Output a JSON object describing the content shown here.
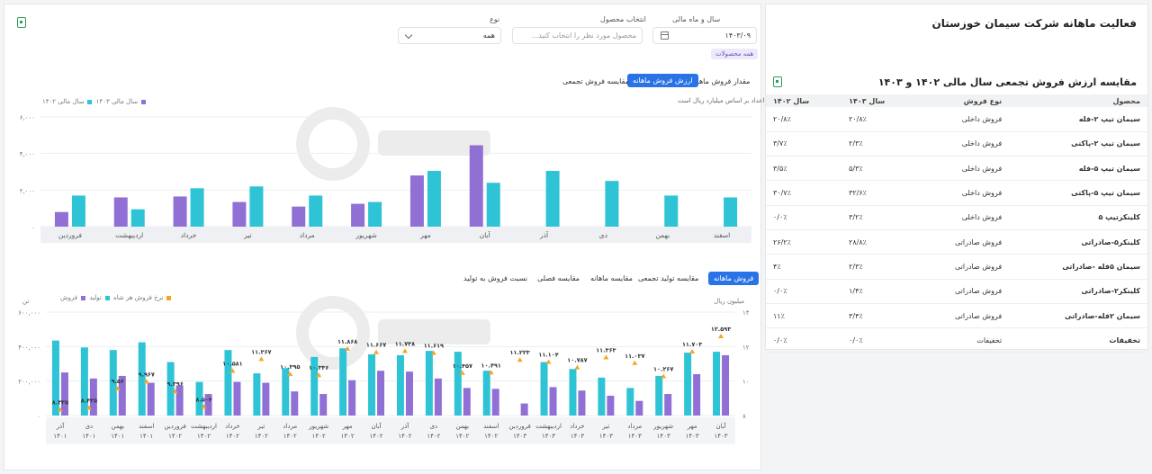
{
  "page": {
    "title": "فعالیت ماهانه شرکت سیمان خوزستان",
    "colors": {
      "teal": "#2ec4d6",
      "purple": "#9170d6",
      "orange": "#f5a623",
      "accent": "#2a73e6"
    }
  },
  "filters": {
    "period_label": "سال و ماه مالی",
    "period_value": "۱۴۰۳/۰۹",
    "product_label": "انتخاب محصول",
    "product_placeholder": "محصول مورد نظر را انتخاب کنید...",
    "type_label": "نوع",
    "type_value": "همه",
    "chip": "همه محصولات"
  },
  "top_tabs": [
    "مقدار فروش ماهانه",
    "ارزش فروش ماهانه",
    "مقایسه فروش تجمعی"
  ],
  "top_tab_active": 1,
  "bottom_tabs": [
    "فروش ماهانه",
    "مقایسه تولید تجمعی",
    "مقایسه ماهانه",
    "مقایسه فصلی",
    "نسبت فروش به تولید"
  ],
  "bottom_tab_active": 0,
  "icons": {
    "export": "excel-export-icon",
    "calendar": "calendar-icon",
    "dropdown": "chevron-down-icon"
  },
  "chart_data": [
    {
      "type": "bar",
      "note": "اعداد بر اساس میلیارد ریال است",
      "ylim": [
        0,
        6000
      ],
      "yticks": [
        "۶,۰۰۰",
        "۴,۰۰۰",
        "۲,۰۰۰",
        "۰"
      ],
      "categories": [
        "اسفند",
        "بهمن",
        "دی",
        "آذر",
        "آبان",
        "مهر",
        "شهریور",
        "مرداد",
        "تیر",
        "خرداد",
        "اردیبهشت",
        "فروردین"
      ],
      "series": [
        {
          "name": "سال مالی ۱۴۰۲",
          "color": "#2ec4d6",
          "values": [
            1600,
            1700,
            2500,
            3050,
            2400,
            3050,
            1350,
            1700,
            2200,
            2100,
            950,
            1700
          ]
        },
        {
          "name": "سال مالی ۱۴۰۳",
          "color": "#9170d6",
          "values": [
            null,
            null,
            null,
            null,
            4450,
            2800,
            1250,
            1100,
            1350,
            1650,
            1600,
            800
          ]
        }
      ]
    },
    {
      "type": "bar",
      "y_left_label": "تن",
      "y_right_label": "میلیون ریال",
      "ylim_left": [
        0,
        600000
      ],
      "yticks_left": [
        "۶۰۰,۰۰۰",
        "۴۰۰,۰۰۰",
        "۲۰۰,۰۰۰",
        "۰"
      ],
      "ylim_right": [
        8,
        14
      ],
      "yticks_right": [
        "۱۴",
        "۱۲",
        "۱۰",
        "۸"
      ],
      "categories": [
        "آبان ۱۴۰۳",
        "مهر ۱۴۰۳",
        "شهریور ۱۴۰۳",
        "مرداد ۱۴۰۳",
        "تیر ۱۴۰۳",
        "خرداد ۱۴۰۳",
        "اردیبهشت ۱۴۰۳",
        "فروردین ۱۴۰۳",
        "اسفند ۱۴۰۲",
        "بهمن ۱۴۰۲",
        "دی ۱۴۰۲",
        "آذر ۱۴۰۲",
        "آبان ۱۴۰۲",
        "مهر ۱۴۰۲",
        "شهریور ۱۴۰۲",
        "مرداد ۱۴۰۲",
        "تیر ۱۴۰۲",
        "خرداد ۱۴۰۲",
        "اردیبهشت ۱۴۰۲",
        "فروردین ۱۴۰۲",
        "اسفند ۱۴۰۱",
        "بهمن ۱۴۰۱",
        "دی ۱۴۰۱",
        "آذر ۱۴۰۱"
      ],
      "series": [
        {
          "name": "تولید",
          "color": "#2ec4d6",
          "values": [
            370000,
            365000,
            230000,
            160000,
            220000,
            270000,
            310000,
            0,
            260000,
            370000,
            375000,
            350000,
            355000,
            390000,
            340000,
            275000,
            245000,
            380000,
            195000,
            310000,
            425000,
            380000,
            395000,
            435000
          ]
        },
        {
          "name": "فروش",
          "color": "#9170d6",
          "values": [
            350000,
            240000,
            125000,
            85000,
            115000,
            145000,
            165000,
            70000,
            155000,
            160000,
            215000,
            255000,
            260000,
            205000,
            125000,
            140000,
            190000,
            195000,
            125000,
            175000,
            190000,
            230000,
            215000,
            250000
          ]
        },
        {
          "name": "نرخ فروش هر شاه",
          "color": "#f5a623",
          "values": [
            12.593,
            11.703,
            10.267,
            11.037,
            11.363,
            10.787,
            11.104,
            11.223,
            10.491,
            10.457,
            11.619,
            11.738,
            11.667,
            11.868,
            10.336,
            10.395,
            11.267,
            10.581,
            8.504,
            9.396,
            9.967,
            9.56,
            8.435,
            8.335
          ]
        }
      ],
      "rate_labels": [
        "۱۲.۵۹۳",
        "۱۱.۷۰۳",
        "۱۰.۲۶۷",
        "۱۱.۰۳۷",
        "۱۱.۳۶۳",
        "۱۰.۷۸۷",
        "۱۱.۱۰۴",
        "۱۱.۲۲۳",
        "۱۰.۴۹۱",
        "۱۰.۴۵۷",
        "۱۱.۶۱۹",
        "۱۱.۷۳۸",
        "۱۱.۶۶۷",
        "۱۱.۸۶۸",
        "۱۰.۳۳۶",
        "۱۰.۳۹۵",
        "۱۱.۲۶۷",
        "۱۰.۵۸۱",
        "۸.۵۰۴",
        "۹.۳۹۶",
        "۹.۹۶۷",
        "۹.۵۶",
        "۸.۴۳۵",
        "۸.۳۳۵"
      ]
    }
  ],
  "comparison_table": {
    "title": "مقایسه ارزش فروش تجمعی سال مالی ۱۴۰۲ و ۱۴۰۳",
    "headers": [
      "محصول",
      "نوع فروش",
      "سال ۱۴۰۳",
      "سال ۱۴۰۲"
    ],
    "rows": [
      [
        "سیمان تیپ ۲-فله",
        "فروش داخلی",
        "۲۰/۸٪",
        "۲۰/۸٪"
      ],
      [
        "سیمان تیپ ۲-پاکتی",
        "فروش داخلی",
        "۲/۳٪",
        "۳/۷٪"
      ],
      [
        "سیمان تیپ ۵-فله",
        "فروش داخلی",
        "۵/۳٪",
        "۳/۵٪"
      ],
      [
        "سیمان تیپ ۵-پاکتی",
        "فروش داخلی",
        "۳۲/۶٪",
        "۳۰/۷٪"
      ],
      [
        "کلینکرتیپ ۵",
        "فروش داخلی",
        "۳/۲٪",
        "۰/۰٪"
      ],
      [
        "کلینکر۵-صادراتی",
        "فروش صادراتی",
        "۲۸/۸٪",
        "۲۶/۲٪"
      ],
      [
        "سیمان ۵فله -صادراتی",
        "فروش صادراتی",
        "۲/۳٪",
        "۴٪"
      ],
      [
        "کلینکر۲-صادراتی",
        "فروش صادراتی",
        "۱/۴٪",
        "۰/۰٪"
      ],
      [
        "سیمان ۲فله-صادراتی",
        "فروش صادراتی",
        "۳/۴٪",
        "۱۱٪"
      ],
      [
        "تخفیفات",
        "تخفیفات",
        "۰/۰٪",
        "۰/۰٪"
      ]
    ]
  }
}
